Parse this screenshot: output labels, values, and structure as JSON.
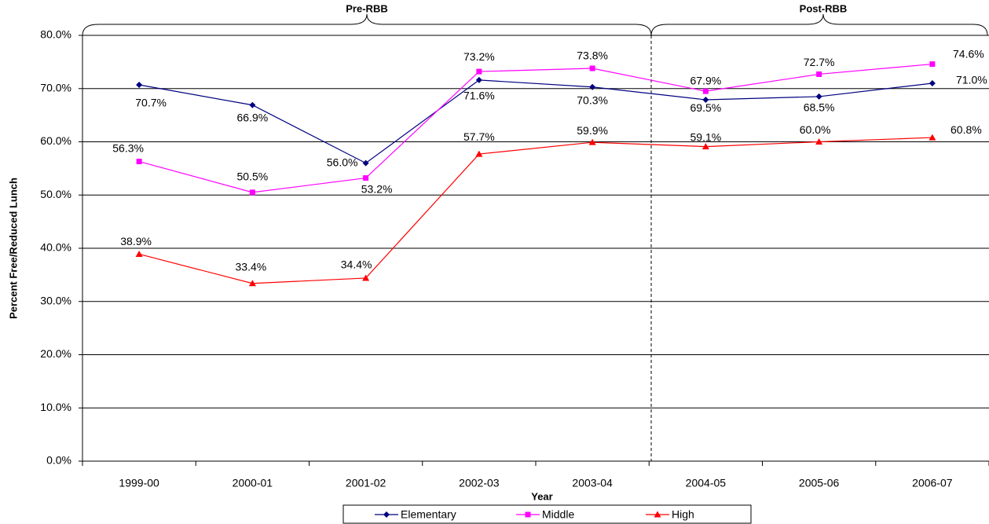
{
  "chart_data": {
    "type": "line",
    "y_label": "Percent Free/Reduced Lunch",
    "x_label": "Year",
    "annotations": [
      "Pre-RBB",
      "Post-RBB"
    ],
    "categories": [
      "1999-00",
      "2000-01",
      "2001-02",
      "2002-03",
      "2003-04",
      "2004-05",
      "2005-06",
      "2006-07"
    ],
    "series": [
      {
        "name": "Elementary",
        "color": "#000080",
        "marker": "diamond",
        "values": [
          70.7,
          66.9,
          56.0,
          71.6,
          70.3,
          67.9,
          68.5,
          71.0
        ],
        "value_labels": [
          "70.7%",
          "66.9%",
          "56.0%",
          "71.6%",
          "70.3%",
          "67.9%",
          "68.5%",
          "71.0%"
        ]
      },
      {
        "name": "Middle",
        "color": "#ff00ff",
        "marker": "square",
        "values": [
          56.3,
          50.5,
          53.2,
          73.2,
          73.8,
          69.5,
          72.7,
          74.6
        ],
        "value_labels": [
          "56.3%",
          "50.5%",
          "53.2%",
          "73.2%",
          "73.8%",
          "69.5%",
          "72.7%",
          "74.6%"
        ]
      },
      {
        "name": "High",
        "color": "#ff0000",
        "marker": "triangle",
        "values": [
          38.9,
          33.4,
          34.4,
          57.7,
          59.9,
          59.1,
          60.0,
          60.8
        ],
        "value_labels": [
          "38.9%",
          "33.4%",
          "34.4%",
          "57.7%",
          "59.9%",
          "59.1%",
          "60.0%",
          "60.8%"
        ]
      }
    ],
    "ylim": [
      0,
      80
    ],
    "yticks": [
      {
        "value": 0,
        "label": "0.0%"
      },
      {
        "value": 10,
        "label": "10.0%"
      },
      {
        "value": 20,
        "label": "20.0%"
      },
      {
        "value": 30,
        "label": "30.0%"
      },
      {
        "value": 40,
        "label": "40.0%"
      },
      {
        "value": 50,
        "label": "50.0%"
      },
      {
        "value": 60,
        "label": "60.0%"
      },
      {
        "value": 70,
        "label": "70.0%"
      },
      {
        "value": 80,
        "label": "80.0%"
      }
    ],
    "grid": true,
    "legend": "bottom"
  }
}
